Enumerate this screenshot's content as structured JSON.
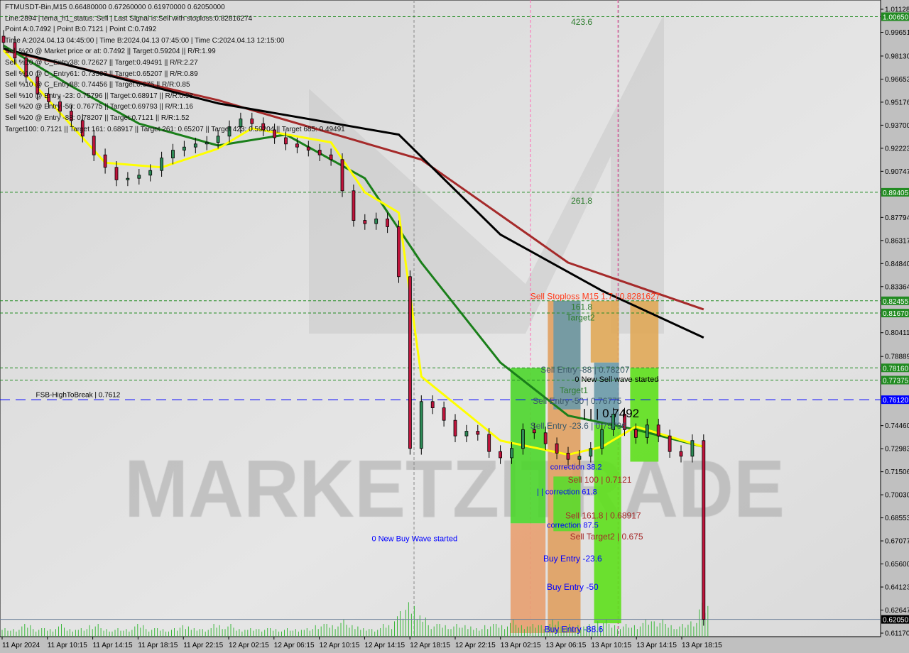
{
  "header": {
    "title": "FTMUSDT-Bin,M15  0.66480000 0.67260000 0.61970000 0.62050000",
    "lines": [
      "Line:2894 | tema_h1_status: Sell | Last Signal is:Sell with stoploss:0.82816274",
      "Point A:0.7492 | Point B:0.7121 | Point C:0.7492",
      "Time A:2024.04.13 04:45:00 | Time B:2024.04.13 07:45:00 | Time C:2024.04.13 12:15:00",
      "Sell %20 @ Market price or at: 0.7492 || Target:0.59204 || R/R:1.99",
      "Sell %10 @ C_Entry38: 0.72627 || Target:0.49491 || R/R:2.27",
      "Sell %10 @ C_Entry61: 0.73503 || Target:0.65207 || R/R:0.89",
      "Sell %10 @ C_Entry88: 0.74456 || Target:0.675 || R/R:0.85",
      "Sell %10 @ Entry -23: 0.75796 || Target:0.68917 || R/R:0.98",
      "Sell %20 @ Entry -50: 0.76775 || Target:0.69793 || R/R:1.16",
      "Sell %20 @ Entry -88: 0.78207 || Target:0.7121 || R/R:1.52",
      "Target100: 0.7121 || Target 161: 0.68917 || Target 261: 0.65207 || Target 423: 0.59204 || Target 685: 0.49491"
    ]
  },
  "watermark": "MARKETZITRADE",
  "colors": {
    "bg": "#dcdcdc",
    "red_ma": "#a52a2a",
    "black_ma": "#000000",
    "green_ma": "#1a7f1a",
    "yellow_ma": "#ffff00",
    "level_green": "#228b22",
    "level_blue": "#0000ff",
    "bull": "#2e8b57",
    "bear": "#c0143c"
  },
  "chart_data": {
    "type": "candlestick",
    "symbol": "FTMUSDT-Bin",
    "timeframe": "M15",
    "x_unit": "hour index",
    "ylim": [
      0.6117,
      1.01128
    ],
    "y_ticks": [
      "1.01128",
      "0.99651",
      "0.98130",
      "0.96653",
      "0.95176",
      "0.93700",
      "0.92223",
      "0.90747",
      "0.87794",
      "0.86317",
      "0.84840",
      "0.83364",
      "0.80411",
      "0.78889",
      "0.74460",
      "0.72983",
      "0.71506",
      "0.70030",
      "0.68553",
      "0.67077",
      "0.65600",
      "0.64123",
      "0.62647",
      "0.61170"
    ],
    "x_ticks": [
      "11 Apr 2024",
      "11 Apr 10:15",
      "11 Apr 14:15",
      "11 Apr 18:15",
      "11 Apr 22:15",
      "12 Apr 02:15",
      "12 Apr 06:15",
      "12 Apr 10:15",
      "12 Apr 14:15",
      "12 Apr 18:15",
      "12 Apr 22:15",
      "13 Apr 02:15",
      "13 Apr 06:15",
      "13 Apr 10:15",
      "13 Apr 14:15",
      "13 Apr 18:15"
    ],
    "close_hourly": [
      0.99,
      0.98,
      0.968,
      0.957,
      0.952,
      0.946,
      0.94,
      0.93,
      0.918,
      0.91,
      0.902,
      0.903,
      0.905,
      0.908,
      0.916,
      0.921,
      0.923,
      0.925,
      0.926,
      0.93,
      0.936,
      0.941,
      0.938,
      0.934,
      0.929,
      0.925,
      0.923,
      0.921,
      0.918,
      0.915,
      0.895,
      0.876,
      0.874,
      0.877,
      0.872,
      0.84,
      0.73,
      0.76,
      0.756,
      0.748,
      0.738,
      0.741,
      0.739,
      0.728,
      0.724,
      0.73,
      0.742,
      0.74,
      0.733,
      0.727,
      0.723,
      0.725,
      0.73,
      0.742,
      0.752,
      0.742,
      0.737,
      0.745,
      0.738,
      0.728,
      0.725,
      0.735,
      0.6205
    ],
    "volume_relative": [
      2,
      2,
      3,
      2,
      2,
      3,
      2,
      2,
      3,
      2,
      2,
      2,
      3,
      2,
      2,
      2,
      3,
      2,
      2,
      3,
      3,
      2,
      2,
      2,
      2,
      2,
      2,
      2,
      3,
      3,
      4,
      3,
      2,
      2,
      3,
      6,
      9,
      5,
      3,
      3,
      3,
      3,
      2,
      3,
      3,
      4,
      3,
      3,
      3,
      4,
      3,
      3,
      3,
      4,
      3,
      3,
      3,
      4,
      4,
      3,
      3,
      4,
      8
    ],
    "moving_averages": [
      {
        "color": "#a52a2a",
        "points": [
          [
            0,
            0.985
          ],
          [
            19,
            0.953
          ],
          [
            37,
            0.915
          ],
          [
            50,
            0.849
          ],
          [
            62,
            0.819
          ]
        ]
      },
      {
        "color": "#000000",
        "points": [
          [
            0,
            0.986
          ],
          [
            19,
            0.951
          ],
          [
            35,
            0.931
          ],
          [
            44,
            0.867
          ],
          [
            53,
            0.831
          ],
          [
            62,
            0.801
          ]
        ]
      },
      {
        "color": "#1a7f1a",
        "points": [
          [
            0,
            0.988
          ],
          [
            6,
            0.962
          ],
          [
            12,
            0.938
          ],
          [
            19,
            0.924
          ],
          [
            25,
            0.931
          ],
          [
            32,
            0.903
          ],
          [
            37,
            0.849
          ],
          [
            44,
            0.785
          ],
          [
            50,
            0.751
          ],
          [
            56,
            0.742
          ],
          [
            62,
            0.731
          ]
        ]
      },
      {
        "color": "#ffff00",
        "points": [
          [
            0,
            0.985
          ],
          [
            9,
            0.913
          ],
          [
            14,
            0.91
          ],
          [
            19,
            0.922
          ],
          [
            22,
            0.935
          ],
          [
            29,
            0.926
          ],
          [
            32,
            0.894
          ],
          [
            35,
            0.881
          ],
          [
            37,
            0.776
          ],
          [
            44,
            0.735
          ],
          [
            50,
            0.726
          ],
          [
            53,
            0.731
          ],
          [
            56,
            0.744
          ],
          [
            62,
            0.731
          ]
        ]
      }
    ],
    "levels": [
      {
        "price": 1.0065,
        "label": "1.00650",
        "color": "#228b22",
        "style": "dotted"
      },
      {
        "price": 0.89405,
        "label": "0.89405",
        "color": "#228b22",
        "style": "dotted"
      },
      {
        "price": 0.82455,
        "label": "0.82455",
        "color": "#228b22",
        "style": "dotted"
      },
      {
        "price": 0.8167,
        "label": "0.81670",
        "color": "#228b22",
        "style": "dotted"
      },
      {
        "price": 0.7816,
        "label": "0.78160",
        "color": "#228b22",
        "style": "dotted"
      },
      {
        "price": 0.77375,
        "label": "0.77375",
        "color": "#228b22",
        "style": "dotted"
      },
      {
        "price": 0.7612,
        "label": "0.76120",
        "color": "#0000ff",
        "style": "dashed"
      },
      {
        "price": 0.6205,
        "label": "0.62050",
        "color": "#000000",
        "style": "solid"
      }
    ],
    "zones": [
      {
        "from": 44.9,
        "to": 48.0,
        "top": 0.7816,
        "bottom": 0.682,
        "color": "#4cd62c"
      },
      {
        "from": 44.9,
        "to": 48.0,
        "top": 0.682,
        "bottom": 0.6117,
        "color": "#e8a070"
      },
      {
        "from": 48.2,
        "to": 51.1,
        "top": 0.8245,
        "bottom": 0.6117,
        "color": "#e0a060"
      },
      {
        "from": 48.7,
        "to": 51.1,
        "top": 0.8245,
        "bottom": 0.755,
        "color": "#6a9aa8"
      },
      {
        "from": 48.7,
        "to": 51.1,
        "top": 0.712,
        "bottom": 0.677,
        "color": "#5adc2c"
      },
      {
        "from": 52.0,
        "to": 54.5,
        "top": 0.8245,
        "bottom": 0.785,
        "color": "#e0a858"
      },
      {
        "from": 52.3,
        "to": 54.5,
        "top": 0.785,
        "bottom": 0.745,
        "color": "#6a9aa8"
      },
      {
        "from": 52.3,
        "to": 54.7,
        "top": 0.745,
        "bottom": 0.618,
        "color": "#5ee01c"
      },
      {
        "from": 55.5,
        "to": 58.0,
        "top": 0.8245,
        "bottom": 0.7816,
        "color": "#e0a858"
      },
      {
        "from": 55.5,
        "to": 58.0,
        "top": 0.7816,
        "bottom": 0.7215,
        "color": "#5ee01c"
      }
    ],
    "annotations": [
      {
        "text": "423.6",
        "price": 1.0013,
        "x": 51.2,
        "color": "#2e7d2e",
        "size": 12
      },
      {
        "text": "261.8",
        "price": 0.8867,
        "x": 51.2,
        "color": "#2e7d2e",
        "size": 12
      },
      {
        "text": "Sell Stoploss M15 1.7 | 0.8281627",
        "price": 0.8255,
        "x": 52.4,
        "color": "#ff3a1a",
        "size": 12
      },
      {
        "text": "161.8",
        "price": 0.8215,
        "x": 51.2,
        "color": "#2e7d2e",
        "size": 12
      },
      {
        "text": "Target2",
        "price": 0.814,
        "x": 51.1,
        "color": "#2e7d2e",
        "size": 12
      },
      {
        "text": "Sell Entry -88 | 0.78207",
        "price": 0.7785,
        "x": 51.5,
        "color": "#3c5a6a",
        "size": 12
      },
      {
        "text": "0 New Sell wave started",
        "price": 0.7731,
        "x": 54.3,
        "color": "#000000",
        "size": 11
      },
      {
        "text": "Target1",
        "price": 0.7653,
        "x": 50.5,
        "color": "#2e7d2e",
        "size": 12
      },
      {
        "text": "Sell Entry -50 | 0.76775",
        "price": 0.7622,
        "x": 50.8,
        "color": "#3c5a6a",
        "size": 12
      },
      {
        "text": "| | | 0.7492",
        "price": 0.76,
        "x": 53.8,
        "color": "#000000",
        "size": 17
      },
      {
        "text": "Sell Entry -23.6 | 0.75796",
        "price": 0.7527,
        "x": 50.9,
        "color": "#3c5a6a",
        "size": 12
      },
      {
        "text": "correction 38.2",
        "price": 0.7165,
        "x": 50.7,
        "color": "#0000ff",
        "size": 11
      },
      {
        "text": "Sell 100 | 0.7121",
        "price": 0.708,
        "x": 52.8,
        "color": "#a52a2a",
        "size": 12
      },
      {
        "text": "| | correction 61.8",
        "price": 0.7005,
        "x": 49.9,
        "color": "#0000ff",
        "size": 11
      },
      {
        "text": "Sell 161.8 | 0.68917",
        "price": 0.6852,
        "x": 53.1,
        "color": "#a52a2a",
        "size": 12
      },
      {
        "text": "correction 87.5",
        "price": 0.6827,
        "x": 50.4,
        "color": "#0000ff",
        "size": 11
      },
      {
        "text": "Sell Target2 | 0.675",
        "price": 0.6717,
        "x": 53.4,
        "color": "#a52a2a",
        "size": 12
      },
      {
        "text": "Buy Entry -23.6",
        "price": 0.6577,
        "x": 50.4,
        "color": "#0000ff",
        "size": 12
      },
      {
        "text": "Buy Entry -50",
        "price": 0.6395,
        "x": 50.4,
        "color": "#0000ff",
        "size": 12
      },
      {
        "text": "Buy Entry -88.6",
        "price": 0.6124,
        "x": 50.5,
        "color": "#0000ff",
        "size": 12
      },
      {
        "text": "0 New Buy Wave started",
        "price": 0.6705,
        "x": 36.4,
        "color": "#0000ff",
        "size": 11
      },
      {
        "text": "FSB-HighToBreak | 0.7612",
        "price": 0.7629,
        "x": 6.6,
        "color": "#000000",
        "size": 10
      }
    ]
  }
}
